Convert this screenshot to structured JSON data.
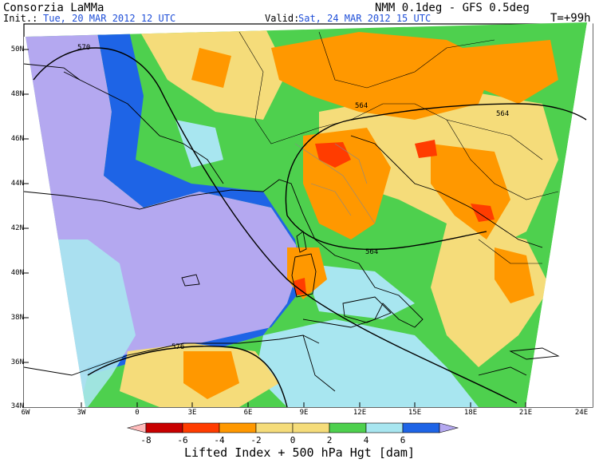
{
  "header": {
    "org": "Consorzia LaMMa",
    "model": "NMM 0.1deg - GFS 0.5deg",
    "init_label": "Init.:",
    "init_value": "Tue, 20 MAR 2012  12 UTC",
    "valid_label": "Valid:",
    "valid_value": "Sat, 24 MAR 2012  15 UTC",
    "lead": "T=+99h"
  },
  "axes": {
    "lat_labels": [
      "50N",
      "48N",
      "46N",
      "44N",
      "42N",
      "40N",
      "38N",
      "36N",
      "34N"
    ],
    "lon_labels": [
      "6W",
      "3W",
      "0",
      "3E",
      "6E",
      "9E",
      "12E",
      "15E",
      "18E",
      "21E",
      "24E"
    ]
  },
  "contours": {
    "hgt_labels": [
      "570",
      "564",
      "564",
      "564",
      "576"
    ]
  },
  "colorbar": {
    "title": "Lifted Index + 500 hPa Hgt [dam]",
    "tick_labels": [
      "-8",
      "-6",
      "-4",
      "-2",
      "0",
      "2",
      "4",
      "6"
    ],
    "colors": [
      "#ffbcbc",
      "#c80000",
      "#ff3c00",
      "#ff9800",
      "#f5dc7a",
      "#4ed04e",
      "#a8e6f0",
      "#1e64e6",
      "#b4a8f0"
    ]
  },
  "field_colors": {
    "purple": "#b4a8f0",
    "blue": "#1e64e6",
    "lightblue": "#a8e6f0",
    "green": "#4ed04e",
    "yellow": "#f5dc7a",
    "orange": "#ff9800",
    "red": "#ff3c00"
  }
}
